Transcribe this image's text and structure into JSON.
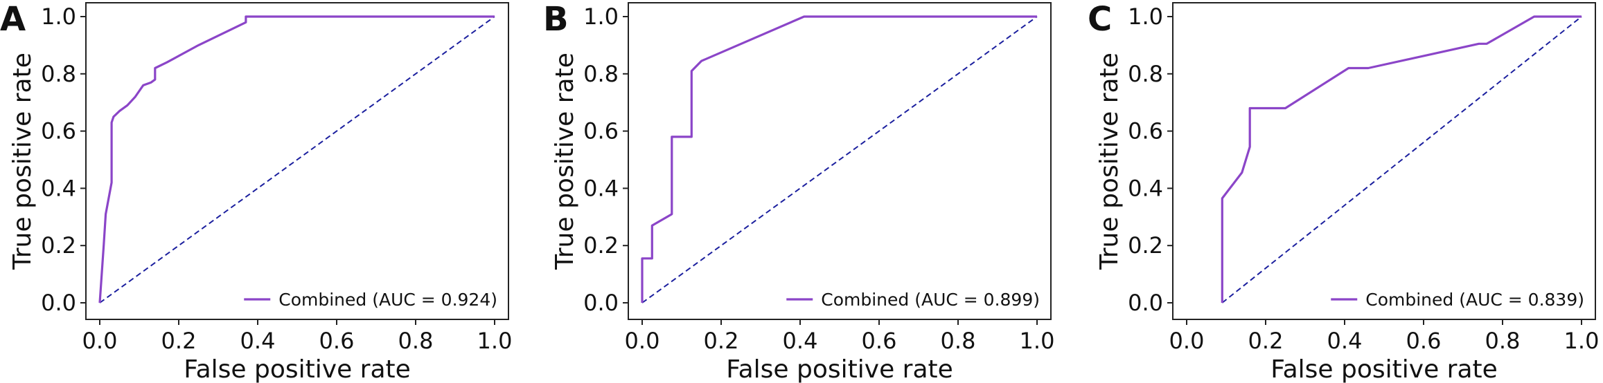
{
  "colors": {
    "roc": "#8b45c8",
    "diagonal": "#1b1f9e",
    "axes": "#222222"
  },
  "chart_data": [
    {
      "panel": "A",
      "type": "line",
      "xlabel": "False positive rate",
      "ylabel": "True positive rate",
      "xlim": [
        0.0,
        1.0
      ],
      "ylim": [
        0.0,
        1.0
      ],
      "xticks": [
        "0.0",
        "0.2",
        "0.4",
        "0.6",
        "0.8",
        "1.0"
      ],
      "yticks": [
        "0.0",
        "0.2",
        "0.4",
        "0.6",
        "0.8",
        "1.0"
      ],
      "legend_position": "lower-right",
      "series": [
        {
          "name": "Combined (AUC = 0.924)",
          "x": [
            0.0,
            0.01,
            0.015,
            0.03,
            0.03,
            0.035,
            0.05,
            0.07,
            0.09,
            0.1,
            0.11,
            0.13,
            0.14,
            0.14,
            0.17,
            0.25,
            0.37,
            0.37,
            1.0
          ],
          "y": [
            0.0,
            0.2,
            0.31,
            0.42,
            0.63,
            0.65,
            0.67,
            0.69,
            0.72,
            0.74,
            0.76,
            0.77,
            0.78,
            0.82,
            0.84,
            0.9,
            0.98,
            1.0,
            1.0
          ]
        }
      ],
      "diagonal": [
        [
          0,
          0
        ],
        [
          1,
          1
        ]
      ]
    },
    {
      "panel": "B",
      "type": "line",
      "xlabel": "False positive rate",
      "ylabel": "True positive rate",
      "xlim": [
        0.0,
        1.0
      ],
      "ylim": [
        0.0,
        1.0
      ],
      "xticks": [
        "0.0",
        "0.2",
        "0.4",
        "0.6",
        "0.8",
        "1.0"
      ],
      "yticks": [
        "0.0",
        "0.2",
        "0.4",
        "0.6",
        "0.8",
        "1.0"
      ],
      "legend_position": "lower-right",
      "series": [
        {
          "name": "Combined (AUC = 0.899)",
          "x": [
            0.0,
            0.0,
            0.025,
            0.025,
            0.075,
            0.075,
            0.125,
            0.125,
            0.15,
            0.41,
            1.0
          ],
          "y": [
            0.0,
            0.155,
            0.155,
            0.27,
            0.31,
            0.58,
            0.58,
            0.81,
            0.845,
            1.0,
            1.0
          ]
        }
      ],
      "diagonal": [
        [
          0,
          0
        ],
        [
          1,
          1
        ]
      ]
    },
    {
      "panel": "C",
      "type": "line",
      "xlabel": "False positive rate",
      "ylabel": "True positive rate",
      "xlim": [
        0.0,
        1.0
      ],
      "ylim": [
        0.0,
        1.0
      ],
      "xticks": [
        "0.0",
        "0.2",
        "0.4",
        "0.6",
        "0.8",
        "1.0"
      ],
      "yticks": [
        "0.0",
        "0.2",
        "0.4",
        "0.6",
        "0.8",
        "1.0"
      ],
      "legend_position": "lower-right",
      "series": [
        {
          "name": "Combined (AUC = 0.839)",
          "x": [
            0.09,
            0.09,
            0.14,
            0.16,
            0.16,
            0.25,
            0.41,
            0.46,
            0.74,
            0.76,
            0.88,
            1.0
          ],
          "y": [
            0.0,
            0.365,
            0.455,
            0.545,
            0.68,
            0.68,
            0.82,
            0.82,
            0.905,
            0.905,
            1.0,
            1.0
          ]
        }
      ],
      "diagonal": [
        [
          0.09,
          0
        ],
        [
          1.0,
          1.0
        ]
      ]
    }
  ]
}
